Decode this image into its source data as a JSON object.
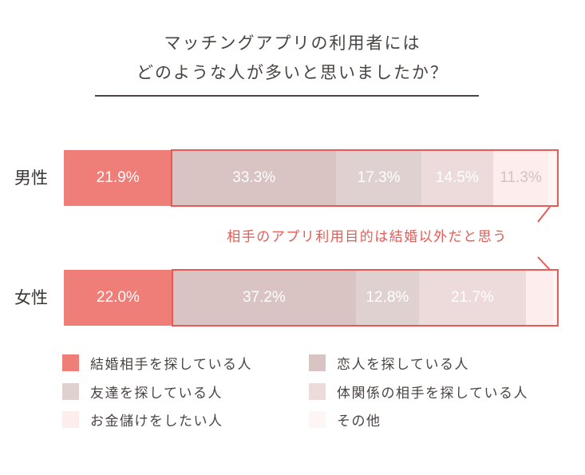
{
  "title": {
    "line1": "マッチングアプリの利用者には",
    "line2": "どのような人が多いと思いましたか？"
  },
  "colors": {
    "marriage": "#ef7d78",
    "lover": "#d9c3c3",
    "friend": "#e0d1d1",
    "body": "#eddbdb",
    "money": "#fdeeed",
    "other": "#fef6f5",
    "highlight": "#e85a55",
    "text": "#4a4443"
  },
  "rows": [
    {
      "label": "男性",
      "segments": [
        {
          "key": "marriage",
          "value": 21.9,
          "label": "21.9%"
        },
        {
          "key": "lover",
          "value": 33.3,
          "label": "33.3%"
        },
        {
          "key": "friend",
          "value": 17.3,
          "label": "17.3%"
        },
        {
          "key": "body",
          "value": 14.5,
          "label": "14.5%"
        },
        {
          "key": "money",
          "value": 11.3,
          "label": "11.3%"
        },
        {
          "key": "other",
          "value": 1.7,
          "label": ""
        }
      ]
    },
    {
      "label": "女性",
      "segments": [
        {
          "key": "marriage",
          "value": 22.0,
          "label": "22.0%"
        },
        {
          "key": "lover",
          "value": 37.2,
          "label": "37.2%"
        },
        {
          "key": "friend",
          "value": 12.8,
          "label": "12.8%"
        },
        {
          "key": "body",
          "value": 21.7,
          "label": "21.7%"
        },
        {
          "key": "money",
          "value": 5.5,
          "label": ""
        },
        {
          "key": "other",
          "value": 0.8,
          "label": ""
        }
      ]
    }
  ],
  "callout": {
    "text": "相手のアプリ利用目的は結婚以外だと思う"
  },
  "legend": [
    {
      "key": "marriage",
      "label": "結婚相手を探している人"
    },
    {
      "key": "lover",
      "label": "恋人を探している人"
    },
    {
      "key": "friend",
      "label": "友達を探している人"
    },
    {
      "key": "body",
      "label": "体関係の相手を探している人"
    },
    {
      "key": "money",
      "label": "お金儲けをしたい人"
    },
    {
      "key": "other",
      "label": "その他"
    }
  ],
  "chart_data": {
    "type": "bar",
    "orientation": "horizontal",
    "stacked": true,
    "title": "マッチングアプリの利用者にはどのような人が多いと思いましたか？",
    "categories": [
      "男性",
      "女性"
    ],
    "series": [
      {
        "name": "結婚相手を探している人",
        "values": [
          21.9,
          22.0
        ]
      },
      {
        "name": "恋人を探している人",
        "values": [
          33.3,
          37.2
        ]
      },
      {
        "name": "友達を探している人",
        "values": [
          17.3,
          12.8
        ]
      },
      {
        "name": "体関係の相手を探している人",
        "values": [
          14.5,
          21.7
        ]
      },
      {
        "name": "お金儲けをしたい人",
        "values": [
          11.3,
          5.5
        ]
      },
      {
        "name": "その他",
        "values": [
          1.7,
          0.8
        ]
      }
    ],
    "unit": "%",
    "xlim": [
      0,
      100
    ],
    "grid": false,
    "legend_position": "bottom",
    "annotations": [
      "相手のアプリ利用目的は結婚以外だと思う"
    ]
  }
}
